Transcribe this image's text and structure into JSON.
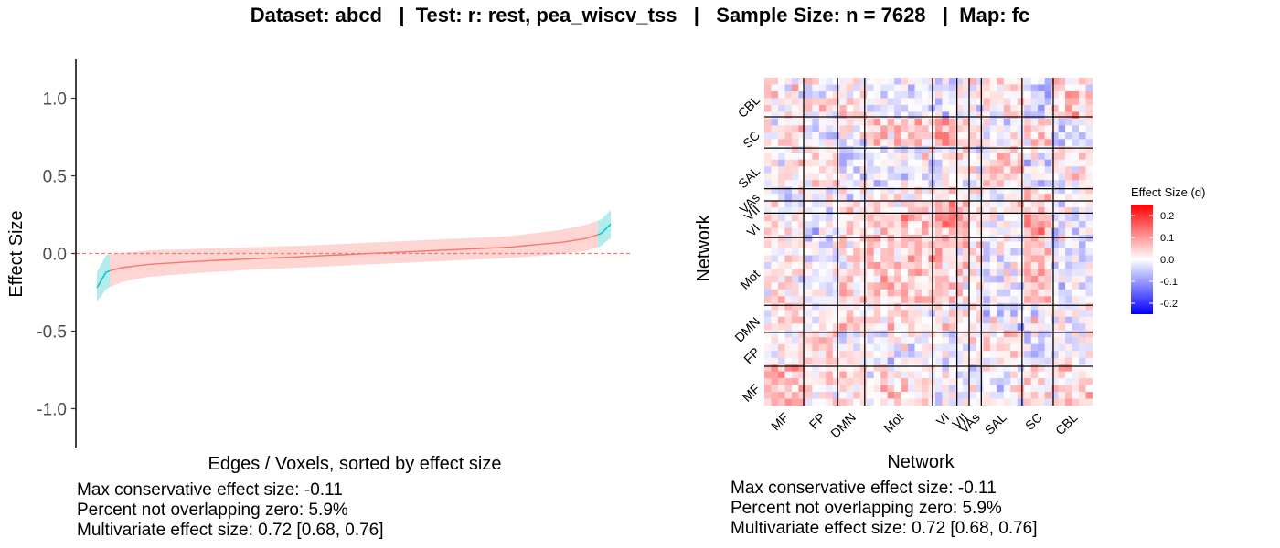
{
  "title": "Dataset: abcd   |  Test: r: rest, pea_wiscv_tss   |   Sample Size: n = 7628   |  Map: fc",
  "colors": {
    "ci_nonoverlap": "#00BFC4",
    "ci_overlap": "#F8766D",
    "zero_line": "#F8766D",
    "heat_low": "#0000FF",
    "heat_mid": "#FFFFFF",
    "heat_high": "#FF0000",
    "network_divider": "#000000"
  },
  "summary": {
    "lines": [
      "Max conservative effect size: -0.11",
      "Percent not overlapping zero: 5.9%",
      "Multivariate effect size: 0.72 [0.68, 0.76]"
    ]
  },
  "chart_data": [
    {
      "type": "area",
      "title": "",
      "xlabel": "Edges / Voxels, sorted by effect size",
      "ylabel": "Effect Size",
      "ylim": [
        -1.25,
        1.25
      ],
      "yticks": [
        1.0,
        0.5,
        0.0,
        -0.5,
        -1.0
      ],
      "ytick_labels": [
        "1.0",
        "0.5",
        "0.0",
        "-0.5",
        "-1.0"
      ],
      "x_range": [
        0,
        1
      ],
      "reference_line": 0,
      "grid": false,
      "curve": {
        "x": [
          0.0,
          0.018,
          0.04,
          0.1,
          0.2,
          0.3,
          0.4,
          0.5,
          0.6,
          0.7,
          0.8,
          0.9,
          0.96,
          0.982,
          1.0
        ],
        "estimate": [
          -0.22,
          -0.12,
          -0.095,
          -0.07,
          -0.05,
          -0.035,
          -0.02,
          -0.005,
          0.01,
          0.025,
          0.04,
          0.07,
          0.1,
          0.13,
          0.19
        ],
        "lower": [
          -0.31,
          -0.23,
          -0.19,
          -0.15,
          -0.125,
          -0.105,
          -0.09,
          -0.075,
          -0.06,
          -0.045,
          -0.03,
          -0.005,
          0.02,
          0.05,
          0.1
        ],
        "upper": [
          -0.12,
          -0.01,
          0.0,
          0.02,
          0.03,
          0.04,
          0.05,
          0.065,
          0.08,
          0.095,
          0.11,
          0.15,
          0.19,
          0.22,
          0.28
        ]
      },
      "overlap_zero_range": [
        0.025,
        0.975
      ]
    },
    {
      "type": "heatmap",
      "title": "",
      "xlabel": "Network",
      "ylabel": "Network",
      "x_categories": [
        "MF",
        "FP",
        "DMN",
        "Mot",
        "VI",
        "VII",
        "VAs",
        "SAL",
        "SC",
        "CBL"
      ],
      "y_categories": [
        "MF",
        "FP",
        "DMN",
        "Mot",
        "VI",
        "VII",
        "VAs",
        "SAL",
        "SC",
        "CBL"
      ],
      "network_sizes": [
        29,
        25,
        20,
        50,
        18,
        9,
        9,
        30,
        23,
        29
      ],
      "legend": {
        "title": "Effect Size (d)",
        "placement": "right",
        "range": [
          -0.25,
          0.25
        ],
        "ticks": [
          0.2,
          0.1,
          0.0,
          -0.1,
          -0.2
        ],
        "tick_labels": [
          "0.2",
          "0.1",
          "0.0",
          "-0.1",
          "-0.2"
        ]
      },
      "block_mean_effects": [
        [
          0.06,
          0.01,
          0.03,
          0.02,
          0.01,
          0.0,
          -0.01,
          0.0,
          0.02,
          0.03
        ],
        [
          0.01,
          0.04,
          0.01,
          -0.01,
          -0.02,
          0.01,
          0.02,
          0.03,
          -0.03,
          0.0
        ],
        [
          0.03,
          0.01,
          0.04,
          0.02,
          0.01,
          0.02,
          0.0,
          -0.02,
          0.01,
          0.01
        ],
        [
          0.02,
          -0.01,
          0.02,
          0.05,
          0.05,
          0.03,
          0.02,
          -0.01,
          0.06,
          -0.02
        ],
        [
          0.01,
          -0.02,
          0.01,
          0.05,
          0.09,
          0.06,
          0.03,
          0.0,
          0.07,
          -0.03
        ],
        [
          0.0,
          0.01,
          0.02,
          0.03,
          0.06,
          0.05,
          0.03,
          0.02,
          0.05,
          0.0
        ],
        [
          -0.01,
          0.02,
          0.0,
          0.02,
          0.03,
          0.03,
          0.02,
          -0.01,
          0.04,
          0.01
        ],
        [
          0.0,
          0.03,
          -0.02,
          -0.01,
          0.0,
          0.02,
          -0.01,
          0.04,
          -0.01,
          0.02
        ],
        [
          0.02,
          -0.03,
          0.01,
          0.06,
          0.07,
          0.05,
          0.04,
          -0.01,
          0.05,
          -0.04
        ],
        [
          0.03,
          0.0,
          0.01,
          -0.02,
          -0.03,
          0.0,
          0.01,
          0.02,
          -0.04,
          0.04
        ]
      ]
    }
  ]
}
